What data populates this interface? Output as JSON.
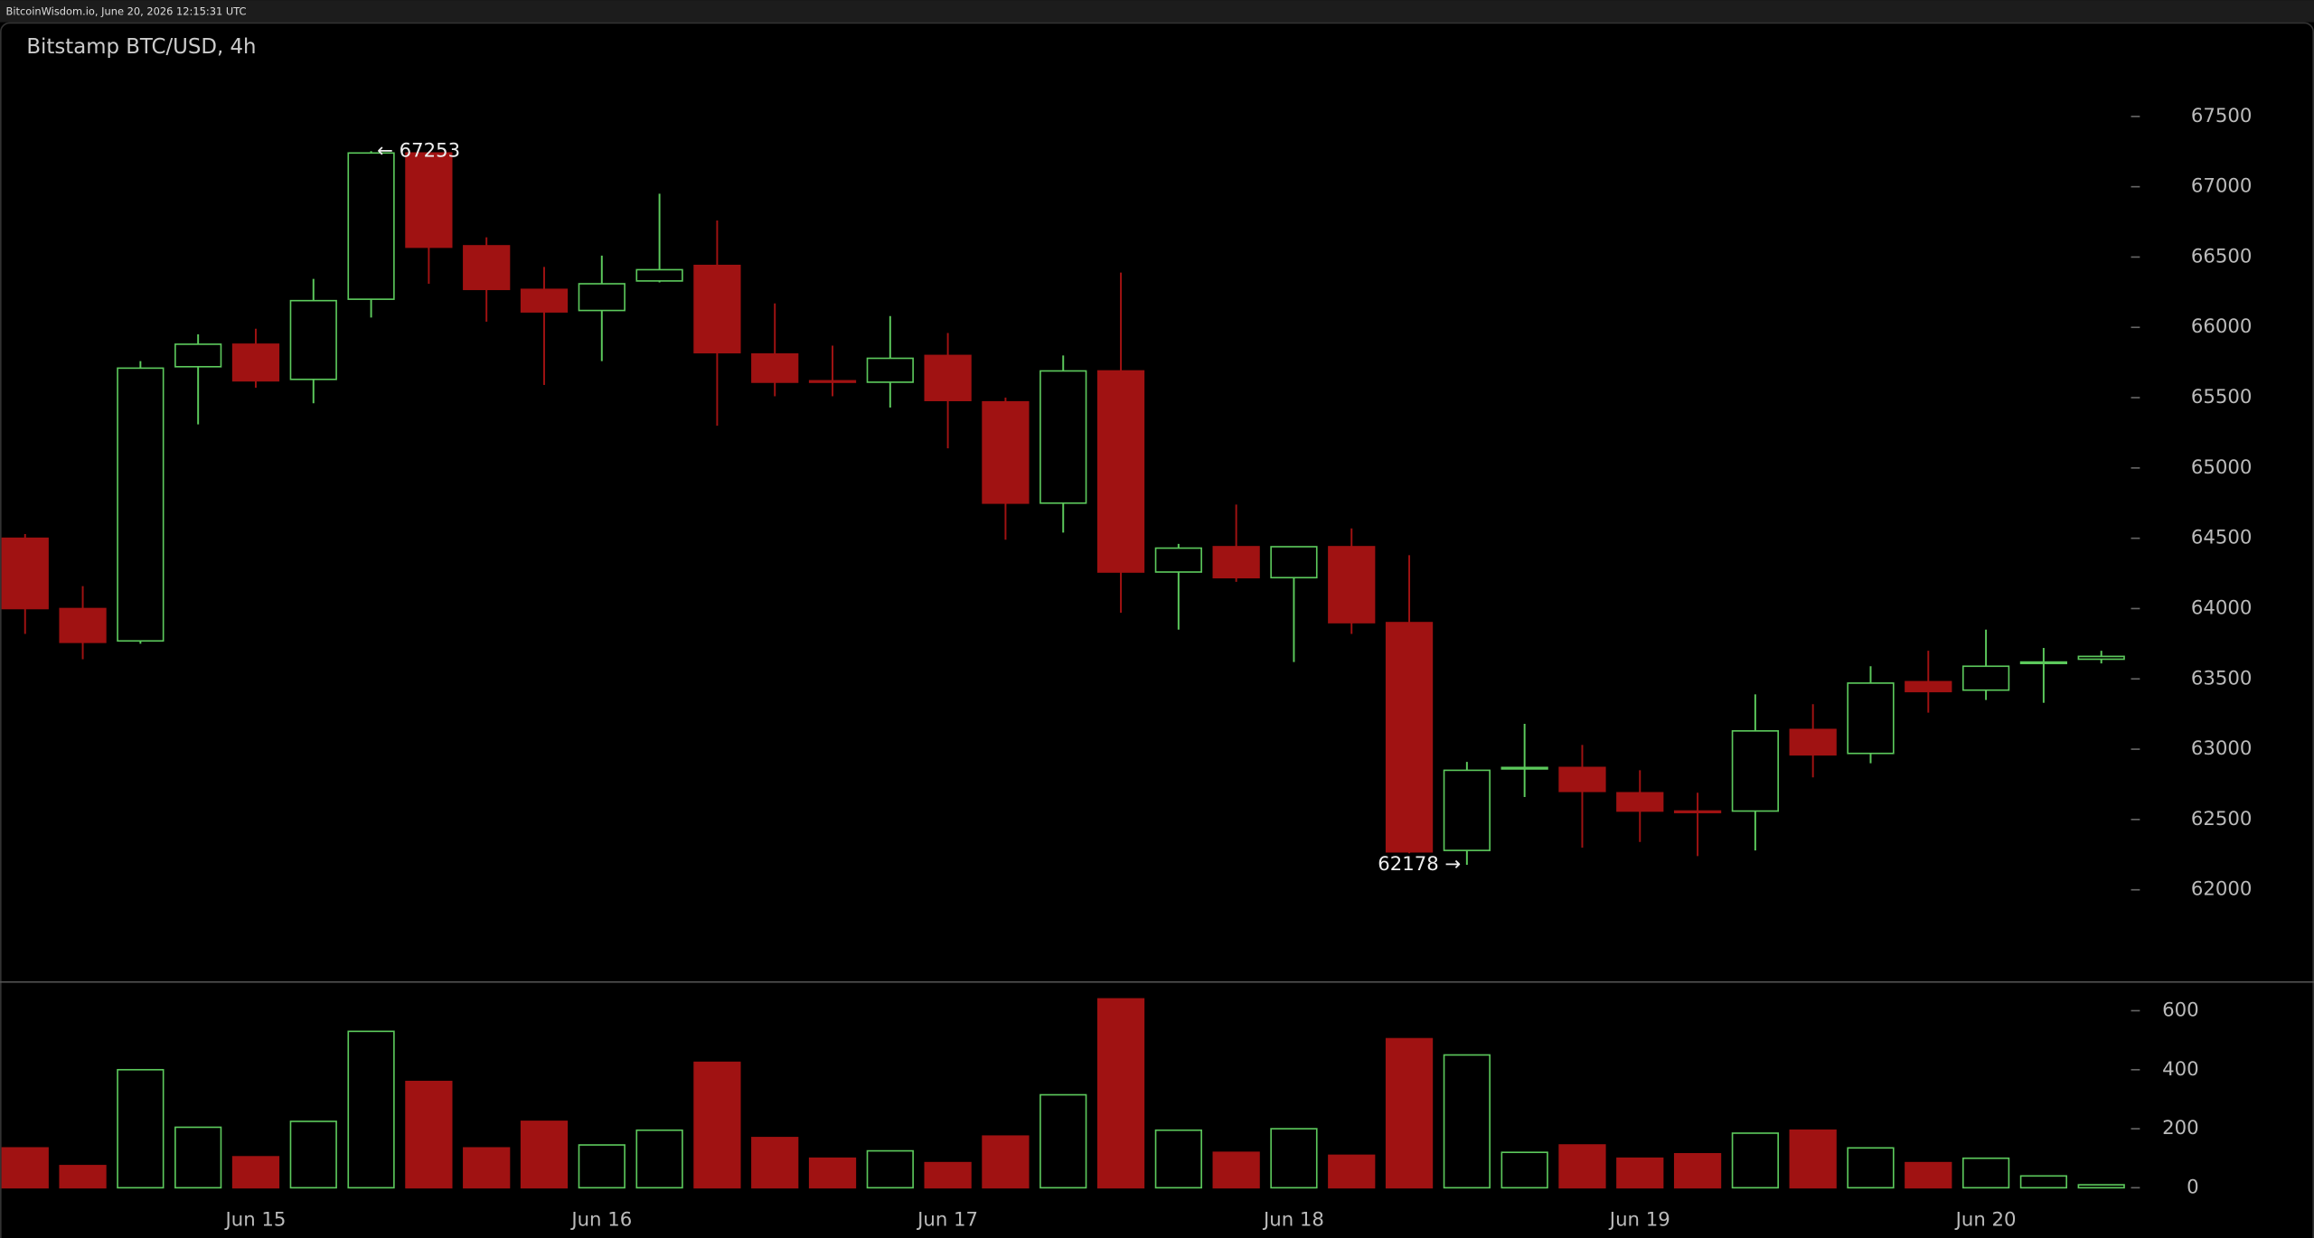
{
  "header": {
    "text": "BitcoinWisdom.io, June 20, 2026 12:15:31 UTC"
  },
  "chart_data": {
    "type": "candlestick",
    "title": "Bitstamp BTC/USD, 4h",
    "categories": [
      null,
      null,
      null,
      null,
      "Jun 15",
      null,
      null,
      null,
      null,
      null,
      "Jun 16",
      null,
      null,
      null,
      null,
      null,
      "Jun 17",
      null,
      null,
      null,
      null,
      null,
      "Jun 18",
      null,
      null,
      null,
      null,
      null,
      "Jun 19",
      null,
      null,
      null,
      null,
      null,
      "Jun 20",
      null,
      null
    ],
    "open": [
      64500,
      64000,
      63770,
      65720,
      65880,
      65630,
      66200,
      67240,
      66580,
      66270,
      66120,
      66330,
      66440,
      65810,
      65620,
      65610,
      65800,
      65470,
      64750,
      65690,
      64260,
      64440,
      64220,
      64440,
      63900,
      62280,
      62860,
      62870,
      62690,
      62560,
      62560,
      63140,
      62970,
      63480,
      63420,
      63610,
      63640
    ],
    "high": [
      64530,
      64160,
      65760,
      65950,
      65990,
      66345,
      67253,
      67240,
      66640,
      66430,
      66510,
      66950,
      66760,
      66170,
      65870,
      66080,
      65960,
      65500,
      65800,
      66390,
      64460,
      64740,
      64440,
      64570,
      64380,
      62910,
      63180,
      63030,
      62850,
      62690,
      63390,
      63320,
      63590,
      63700,
      63850,
      63720,
      63700
    ],
    "low": [
      63820,
      63640,
      63750,
      65310,
      65570,
      65460,
      66070,
      66310,
      66040,
      65590,
      65760,
      66320,
      65300,
      65510,
      65510,
      65430,
      65140,
      64490,
      64540,
      63970,
      63850,
      64190,
      63620,
      63820,
      62260,
      62178,
      62660,
      62300,
      62340,
      62240,
      62280,
      62800,
      62900,
      63260,
      63350,
      63330,
      63610
    ],
    "close": [
      64000,
      63760,
      65710,
      65880,
      65620,
      66190,
      67240,
      66570,
      66270,
      66110,
      66310,
      66410,
      65820,
      65610,
      65610,
      65780,
      65480,
      64750,
      65690,
      64260,
      64430,
      64220,
      64440,
      63900,
      62270,
      62850,
      62870,
      62700,
      62560,
      62550,
      63130,
      62960,
      63470,
      63410,
      63590,
      63620,
      63660
    ],
    "volume": [
      135,
      75,
      400,
      205,
      105,
      225,
      530,
      360,
      135,
      225,
      145,
      195,
      425,
      170,
      100,
      125,
      85,
      175,
      315,
      640,
      195,
      120,
      200,
      110,
      505,
      450,
      120,
      145,
      100,
      115,
      185,
      195,
      135,
      85,
      100,
      40,
      10
    ],
    "up_color": "#5cc95c",
    "down_color": "#a01212",
    "ylim": [
      61350,
      68170
    ],
    "yticks": [
      62000,
      62500,
      63000,
      63500,
      64000,
      64500,
      65000,
      65500,
      66000,
      66500,
      67000,
      67500
    ],
    "volume_ylim": [
      -170,
      690
    ],
    "volume_yticks": [
      0,
      200,
      400,
      600
    ],
    "annotations": [
      "← 67253",
      "62178 →"
    ]
  }
}
